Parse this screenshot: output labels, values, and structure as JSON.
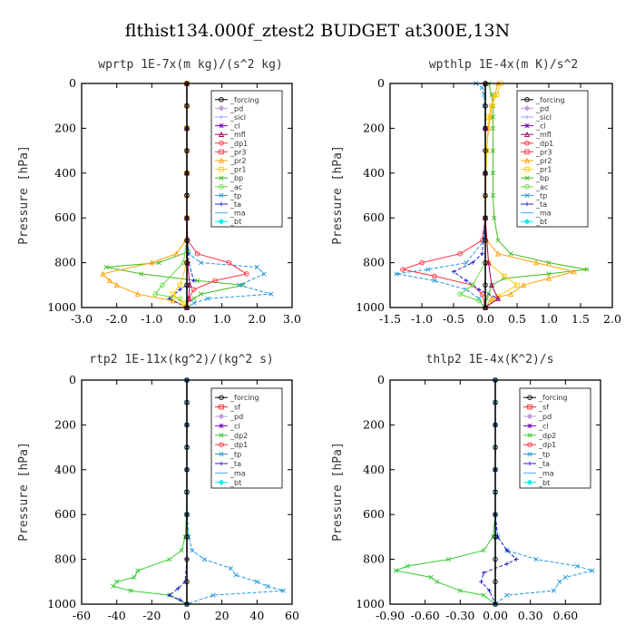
{
  "figure_title": "flthist134.000f_ztest2  BUDGET at300E,13N",
  "colors": {
    "_forcing": "#000000",
    "_pd": "#c39be0",
    "_sicl": "#9aa0ff",
    "_cl": "#7a00c0",
    "_mfl": "#b00060",
    "_dp1": "#ff3040",
    "_pr3": "#ff3040",
    "_pr2": "#ffa000",
    "_pr1": "#ffcc00",
    "_bp": "#44bb22",
    "_ac": "#66dd44",
    "_tp": "#2299dd",
    "_ta": "#2222cc",
    "_ma": "#44aaff",
    "_bt": "#00eeee",
    "_sf": "#ff2020",
    "_dp2": "#33cc33"
  },
  "chart_data": [
    {
      "type": "line",
      "title": "wprtp  1E-7x(m kg)/(s^2 kg)",
      "xlabel": "",
      "ylabel": "Pressure [hPa]",
      "xlim": [
        -3.0,
        3.0
      ],
      "ylim": [
        1000,
        0
      ],
      "xticks": [
        "-3.0",
        "-2.0",
        "-1.0",
        "0.0",
        "1.0",
        "2.0",
        "3.0"
      ],
      "yticks": [
        "0",
        "200",
        "400",
        "600",
        "800",
        "1000"
      ],
      "grid": false,
      "legend": "top-right",
      "legend_entries": [
        "_forcing",
        "_pd",
        "_sicl",
        "_cl",
        "_mfl",
        "_dp1",
        "_pr3",
        "_pr2",
        "_pr1",
        "_bp",
        "_ac",
        "_tp",
        "_ta",
        "_ma",
        "_bt"
      ],
      "series": [
        {
          "name": "_bp",
          "y": [
            0,
            100,
            200,
            300,
            400,
            500,
            600,
            700,
            750,
            800,
            820,
            850,
            880,
            900,
            940,
            960,
            980,
            1000
          ],
          "x": [
            0,
            0,
            0,
            0,
            0,
            0,
            0,
            0.02,
            0.05,
            -0.8,
            -2.3,
            -1.3,
            0.3,
            1.6,
            0.4,
            0.2,
            0,
            0
          ]
        },
        {
          "name": "_tp",
          "y": [
            0,
            100,
            200,
            300,
            400,
            500,
            600,
            700,
            760,
            800,
            820,
            850,
            900,
            940,
            960,
            980,
            1000
          ],
          "x": [
            0,
            0,
            0,
            0,
            0,
            0,
            0,
            0.02,
            0.05,
            0.4,
            2.0,
            2.2,
            1.5,
            2.4,
            0.6,
            0.2,
            0
          ]
        },
        {
          "name": "_pr2",
          "y": [
            0,
            100,
            200,
            300,
            400,
            500,
            600,
            700,
            760,
            800,
            850,
            880,
            900,
            940,
            970,
            1000
          ],
          "x": [
            0,
            0,
            0,
            0,
            0,
            0,
            0,
            -0.02,
            -0.3,
            -1.0,
            -2.4,
            -2.2,
            -2.0,
            -1.4,
            -0.4,
            0
          ]
        },
        {
          "name": "_dp1",
          "y": [
            0,
            100,
            200,
            300,
            400,
            500,
            600,
            700,
            760,
            800,
            850,
            880,
            920,
            960,
            1000
          ],
          "x": [
            0,
            0,
            0,
            0,
            0,
            0,
            0,
            0.02,
            0.3,
            1.2,
            1.7,
            0.8,
            0.2,
            0.05,
            0
          ]
        },
        {
          "name": "_ac",
          "y": [
            0,
            200,
            400,
            600,
            700,
            800,
            900,
            940,
            960,
            1000
          ],
          "x": [
            0,
            0,
            0,
            0,
            0,
            -0.1,
            -0.7,
            -0.9,
            -0.2,
            0
          ]
        },
        {
          "name": "_ta",
          "y": [
            0,
            200,
            400,
            600,
            800,
            880,
            920,
            960,
            1000
          ],
          "x": [
            0,
            0,
            0,
            0,
            0.05,
            0.2,
            -0.2,
            -0.5,
            0
          ]
        },
        {
          "name": "_pr1",
          "y": [
            0,
            200,
            400,
            600,
            800,
            900,
            940,
            980,
            1000
          ],
          "x": [
            0,
            0,
            0,
            0,
            0,
            -0.2,
            -0.4,
            -0.1,
            0
          ]
        },
        {
          "name": "_mfl",
          "y": [
            0,
            200,
            400,
            600,
            800,
            900,
            960,
            1000
          ],
          "x": [
            0,
            0,
            0,
            0,
            0.02,
            0.08,
            0.05,
            0
          ]
        },
        {
          "name": "_forcing",
          "y": [
            0,
            100,
            200,
            300,
            400,
            500,
            600,
            700,
            800,
            900,
            1000
          ],
          "x": [
            0,
            0,
            0,
            0,
            0,
            0,
            0,
            0,
            0,
            0,
            0
          ]
        }
      ]
    },
    {
      "type": "line",
      "title": "wpthlp  1E-4x(m K)/s^2",
      "xlabel": "",
      "ylabel": "Pressure [hPa]",
      "xlim": [
        -1.5,
        2.0
      ],
      "ylim": [
        1000,
        0
      ],
      "xticks": [
        "-1.5",
        "-1.0",
        "-0.5",
        "0.0",
        "0.5",
        "1.0",
        "1.5",
        "2.0"
      ],
      "yticks": [
        "0",
        "200",
        "400",
        "600",
        "800",
        "1000"
      ],
      "grid": false,
      "legend": "top-right",
      "legend_entries": [
        "_forcing",
        "_pd",
        "_sicl",
        "_cl",
        "_mfl",
        "_dp1",
        "_pr3",
        "_pr2",
        "_pr1",
        "_bp",
        "_ac",
        "_tp",
        "_ta",
        "_ma",
        "_bt"
      ],
      "series": [
        {
          "name": "_bp",
          "y": [
            0,
            50,
            100,
            150,
            200,
            300,
            400,
            500,
            600,
            700,
            760,
            800,
            830,
            850,
            870,
            900,
            940,
            960,
            1000
          ],
          "x": [
            0.05,
            0.1,
            0.12,
            0.12,
            0.12,
            0.12,
            0.12,
            0.12,
            0.14,
            0.2,
            0.4,
            1.0,
            1.6,
            1.0,
            0.3,
            0.1,
            0.05,
            0.02,
            0
          ]
        },
        {
          "name": "_pr2",
          "y": [
            0,
            50,
            100,
            150,
            200,
            300,
            400,
            500,
            600,
            700,
            760,
            800,
            840,
            870,
            900,
            940,
            960,
            1000
          ],
          "x": [
            0.2,
            0.15,
            0.1,
            0.08,
            0.05,
            0.02,
            0,
            0,
            0,
            0.02,
            0.2,
            0.8,
            1.4,
            1.0,
            0.6,
            0.4,
            0.1,
            0
          ]
        },
        {
          "name": "_pr1",
          "y": [
            0,
            50,
            100,
            150,
            300,
            600,
            800,
            860,
            900,
            950,
            1000
          ],
          "x": [
            0.25,
            0.18,
            0.1,
            0.05,
            0.02,
            0,
            0.05,
            0.3,
            0.5,
            0.2,
            0
          ]
        },
        {
          "name": "_dp1",
          "y": [
            0,
            100,
            200,
            400,
            600,
            700,
            760,
            800,
            830,
            860,
            900,
            940,
            1000
          ],
          "x": [
            0,
            0,
            0,
            0,
            0,
            -0.05,
            -0.4,
            -1.0,
            -1.3,
            -0.8,
            -0.2,
            -0.05,
            0
          ]
        },
        {
          "name": "_tp",
          "y": [
            0,
            20,
            50,
            100,
            200,
            400,
            600,
            700,
            800,
            830,
            850,
            880,
            920,
            960,
            1000
          ],
          "x": [
            -0.15,
            -0.05,
            -0.02,
            -0.01,
            0,
            0,
            0,
            -0.02,
            -0.3,
            -0.9,
            -1.4,
            -0.8,
            -0.3,
            -0.1,
            0
          ]
        },
        {
          "name": "_ta",
          "y": [
            0,
            200,
            400,
            600,
            760,
            800,
            840,
            880,
            920,
            960,
            1000
          ],
          "x": [
            0,
            0,
            0,
            0,
            -0.05,
            -0.2,
            -0.5,
            -0.3,
            -0.1,
            0.2,
            0
          ]
        },
        {
          "name": "_ac",
          "y": [
            0,
            200,
            400,
            600,
            800,
            900,
            940,
            970,
            1000
          ],
          "x": [
            0,
            0,
            0,
            0,
            0,
            -0.2,
            -0.4,
            -0.1,
            0
          ]
        },
        {
          "name": "_mfl",
          "y": [
            0,
            200,
            400,
            600,
            800,
            900,
            960,
            1000
          ],
          "x": [
            0,
            0,
            0,
            0,
            0.05,
            0.1,
            0.2,
            0
          ]
        },
        {
          "name": "_forcing",
          "y": [
            0,
            100,
            200,
            300,
            400,
            500,
            600,
            700,
            800,
            900,
            1000
          ],
          "x": [
            0,
            0,
            0,
            0,
            0,
            0,
            0,
            0,
            0,
            0,
            0
          ]
        }
      ]
    },
    {
      "type": "line",
      "title": "rtp2  1E-11x(kg^2)/(kg^2 s)",
      "xlabel": "",
      "ylabel": "Pressure [hPa]",
      "xlim": [
        -60,
        60
      ],
      "ylim": [
        1000,
        0
      ],
      "xticks": [
        "-60",
        "-40",
        "-20",
        "0",
        "20",
        "40",
        "60"
      ],
      "yticks": [
        "0",
        "200",
        "400",
        "600",
        "800",
        "1000"
      ],
      "grid": false,
      "legend": "top-right",
      "legend_entries": [
        "_forcing",
        "_sf",
        "_pd",
        "_cl",
        "_dp2",
        "_dp1",
        "_tp",
        "_ta",
        "_ma",
        "_bt"
      ],
      "series": [
        {
          "name": "_dp2",
          "y": [
            0,
            100,
            200,
            300,
            400,
            500,
            600,
            700,
            760,
            800,
            850,
            880,
            900,
            920,
            940,
            960,
            1000
          ],
          "x": [
            0,
            0,
            0,
            0,
            0,
            0,
            -0.2,
            -1,
            -3,
            -10,
            -28,
            -30,
            -40,
            -42,
            -32,
            -10,
            0
          ]
        },
        {
          "name": "_tp",
          "y": [
            0,
            100,
            200,
            300,
            400,
            500,
            600,
            700,
            760,
            800,
            840,
            870,
            900,
            920,
            940,
            960,
            1000
          ],
          "x": [
            0,
            0,
            0,
            0,
            0,
            0,
            0.2,
            1,
            3,
            10,
            25,
            28,
            40,
            46,
            55,
            15,
            0
          ]
        },
        {
          "name": "_ta",
          "y": [
            0,
            200,
            400,
            600,
            800,
            900,
            930,
            960,
            980,
            1000
          ],
          "x": [
            0,
            0,
            0,
            0,
            0,
            -1,
            -5,
            -10,
            -4,
            0
          ]
        },
        {
          "name": "_forcing",
          "y": [
            0,
            100,
            200,
            300,
            400,
            500,
            600,
            700,
            800,
            900,
            1000
          ],
          "x": [
            0,
            0,
            0,
            0,
            0,
            0,
            0,
            0,
            0,
            0,
            0
          ]
        }
      ]
    },
    {
      "type": "line",
      "title": "thlp2  1E-4x(K^2)/s",
      "xlabel": "",
      "ylabel": "Pressure [hPa]",
      "xlim": [
        -0.9,
        0.9
      ],
      "ylim": [
        1000,
        0
      ],
      "xticks": [
        "-0.90",
        "-0.60",
        "-0.30",
        "0.00",
        "0.30",
        "0.60"
      ],
      "yticks": [
        "0",
        "200",
        "400",
        "600",
        "800",
        "1000"
      ],
      "grid": false,
      "legend": "top-right",
      "legend_entries": [
        "_forcing",
        "_sf",
        "_pd",
        "_cl",
        "_dp2",
        "_dp1",
        "_tp",
        "_ta",
        "_ma",
        "_bt"
      ],
      "series": [
        {
          "name": "_dp2",
          "y": [
            0,
            100,
            200,
            300,
            400,
            500,
            600,
            700,
            760,
            800,
            830,
            850,
            880,
            900,
            940,
            960,
            1000
          ],
          "x": [
            0,
            0,
            0,
            0,
            0,
            0,
            0,
            -0.02,
            -0.1,
            -0.4,
            -0.75,
            -0.85,
            -0.55,
            -0.5,
            -0.3,
            -0.1,
            0
          ]
        },
        {
          "name": "_tp",
          "y": [
            0,
            100,
            200,
            300,
            400,
            500,
            600,
            700,
            760,
            800,
            830,
            850,
            880,
            900,
            940,
            960,
            1000
          ],
          "x": [
            0,
            0,
            0,
            0,
            0,
            0,
            0,
            0.02,
            0.1,
            0.35,
            0.7,
            0.83,
            0.6,
            0.55,
            0.5,
            0.1,
            0
          ]
        },
        {
          "name": "_ta",
          "y": [
            0,
            200,
            400,
            600,
            700,
            760,
            800,
            820,
            860,
            900,
            940,
            1000
          ],
          "x": [
            0,
            0,
            0,
            0,
            0.02,
            0.1,
            0.18,
            0.1,
            -0.1,
            -0.12,
            -0.05,
            0
          ]
        },
        {
          "name": "_forcing",
          "y": [
            0,
            100,
            200,
            300,
            400,
            500,
            600,
            700,
            800,
            900,
            1000
          ],
          "x": [
            0,
            0,
            0,
            0,
            0,
            0,
            0,
            0,
            0,
            0,
            0
          ]
        }
      ]
    }
  ]
}
